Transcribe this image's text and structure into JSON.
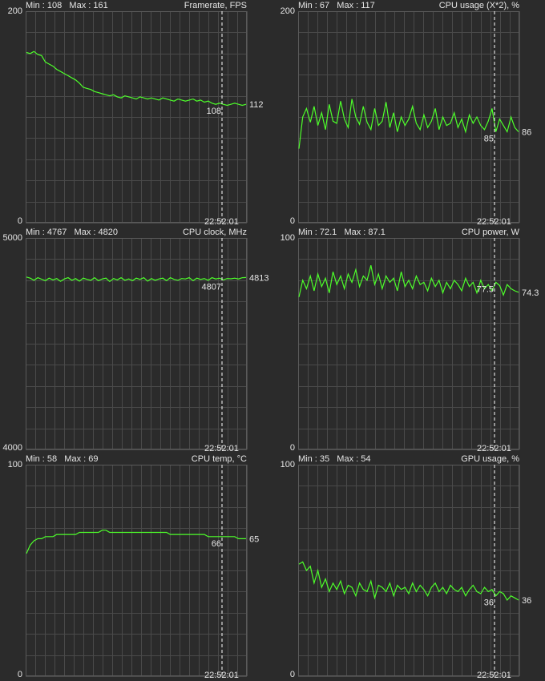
{
  "colors": {
    "background": "#2b2b2b",
    "grid": "#4a4a4a",
    "trace": "#4dff2a",
    "text": "#e6e6e6",
    "marker": "#ffffff"
  },
  "panels": [
    {
      "min_label": "Min : 108   Max : 161",
      "title": "Framerate, FPS",
      "y_top": "200",
      "y_bottom": "0",
      "time": "22:52:01",
      "cursor_value": "108",
      "current_value": "112",
      "ylim": [
        0,
        200
      ],
      "chart_data": {
        "type": "line",
        "ylim": [
          0,
          200
        ],
        "values": [
          161,
          160,
          162,
          159,
          158,
          152,
          150,
          148,
          145,
          143,
          141,
          139,
          137,
          135,
          132,
          128,
          127,
          126,
          124,
          123,
          122,
          121,
          120,
          121,
          119,
          118,
          120,
          119,
          118,
          117,
          119,
          118,
          117,
          118,
          117,
          116,
          118,
          117,
          116,
          115,
          117,
          116,
          115,
          116,
          117,
          115,
          116,
          114,
          115,
          113,
          112,
          113,
          112,
          111,
          112,
          113,
          112,
          111,
          112
        ]
      }
    },
    {
      "min_label": "Min : 67   Max : 117",
      "title": "CPU usage (X*2), %",
      "y_top": "200",
      "y_bottom": "0",
      "time": "22:52:01",
      "cursor_value": "85",
      "current_value": "86",
      "ylim": [
        0,
        200
      ],
      "chart_data": {
        "type": "line",
        "ylim": [
          0,
          200
        ],
        "values": [
          70,
          100,
          108,
          95,
          110,
          92,
          104,
          88,
          112,
          96,
          94,
          115,
          98,
          90,
          117,
          100,
          93,
          110,
          95,
          88,
          108,
          92,
          96,
          114,
          90,
          104,
          86,
          100,
          92,
          98,
          110,
          94,
          88,
          102,
          90,
          96,
          108,
          88,
          100,
          92,
          94,
          104,
          90,
          98,
          86,
          102,
          94,
          100,
          92,
          88,
          96,
          108,
          86,
          98,
          92,
          86,
          100,
          90,
          86
        ]
      }
    },
    {
      "min_label": "Min : 4767   Max : 4820",
      "title": "CPU clock, MHz",
      "y_top": "5000",
      "y_bottom": "4000",
      "time": "22:52:01",
      "cursor_value": "4807",
      "current_value": "4813",
      "ylim": [
        4000,
        5000
      ],
      "chart_data": {
        "type": "line",
        "ylim": [
          4000,
          5000
        ],
        "values": [
          4815,
          4810,
          4800,
          4812,
          4805,
          4798,
          4810,
          4802,
          4808,
          4795,
          4806,
          4812,
          4800,
          4808,
          4796,
          4810,
          4804,
          4800,
          4812,
          4798,
          4806,
          4810,
          4794,
          4808,
          4802,
          4812,
          4800,
          4806,
          4798,
          4810,
          4804,
          4812,
          4796,
          4808,
          4800,
          4806,
          4810,
          4798,
          4812,
          4804,
          4800,
          4808,
          4806,
          4812,
          4798,
          4810,
          4804,
          4808,
          4800,
          4812,
          4806,
          4810,
          4802,
          4808,
          4807,
          4810,
          4806,
          4812,
          4813
        ]
      }
    },
    {
      "min_label": "Min : 72.1   Max : 87.1",
      "title": "CPU power, W",
      "y_top": "100",
      "y_bottom": "0",
      "time": "22:52:01",
      "cursor_value": "77.5",
      "current_value": "74.3",
      "ylim": [
        0,
        100
      ],
      "chart_data": {
        "type": "line",
        "ylim": [
          0,
          100
        ],
        "values": [
          72.1,
          80,
          76,
          82,
          75,
          83,
          77,
          81,
          74,
          84,
          78,
          82,
          76,
          83,
          79,
          85,
          77,
          82,
          80,
          87.1,
          78,
          83,
          76,
          82,
          79,
          81,
          75,
          84,
          77,
          80,
          76,
          82,
          78,
          79,
          75,
          81,
          77,
          80,
          74,
          79,
          76,
          80,
          78,
          75,
          81,
          77,
          79,
          74,
          80,
          76,
          78,
          75,
          79,
          77.5,
          73,
          78,
          76,
          75,
          74.3
        ]
      }
    },
    {
      "min_label": "Min : 58   Max : 69",
      "title": "CPU temp, °C",
      "y_top": "100",
      "y_bottom": "0",
      "time": "22:52:01",
      "cursor_value": "66",
      "current_value": "65",
      "ylim": [
        0,
        100
      ],
      "chart_data": {
        "type": "line",
        "ylim": [
          0,
          100
        ],
        "values": [
          58,
          62,
          64,
          65,
          65,
          66,
          66,
          66,
          67,
          67,
          67,
          67,
          67,
          67,
          68,
          68,
          68,
          68,
          68,
          68,
          69,
          69,
          68,
          68,
          68,
          68,
          68,
          68,
          68,
          68,
          68,
          68,
          68,
          68,
          68,
          68,
          68,
          68,
          67,
          67,
          67,
          67,
          67,
          67,
          67,
          67,
          67,
          67,
          66,
          66,
          66,
          66,
          66,
          66,
          66,
          66,
          65,
          65,
          65
        ]
      }
    },
    {
      "min_label": "Min : 35   Max : 54",
      "title": "GPU usage, %",
      "y_top": "100",
      "y_bottom": "0",
      "time": "22:52:01",
      "cursor_value": "36",
      "current_value": "36",
      "ylim": [
        0,
        100
      ],
      "chart_data": {
        "type": "line",
        "ylim": [
          0,
          100
        ],
        "values": [
          53,
          54,
          50,
          52,
          44,
          50,
          42,
          46,
          40,
          44,
          41,
          45,
          39,
          43,
          42,
          38,
          44,
          41,
          40,
          45,
          37,
          43,
          42,
          40,
          44,
          38,
          43,
          41,
          42,
          39,
          44,
          40,
          43,
          41,
          38,
          42,
          44,
          40,
          42,
          39,
          43,
          41,
          40,
          42,
          38,
          41,
          43,
          40,
          39,
          42,
          40,
          41,
          38,
          40,
          39,
          36,
          38,
          37,
          36
        ]
      }
    }
  ]
}
